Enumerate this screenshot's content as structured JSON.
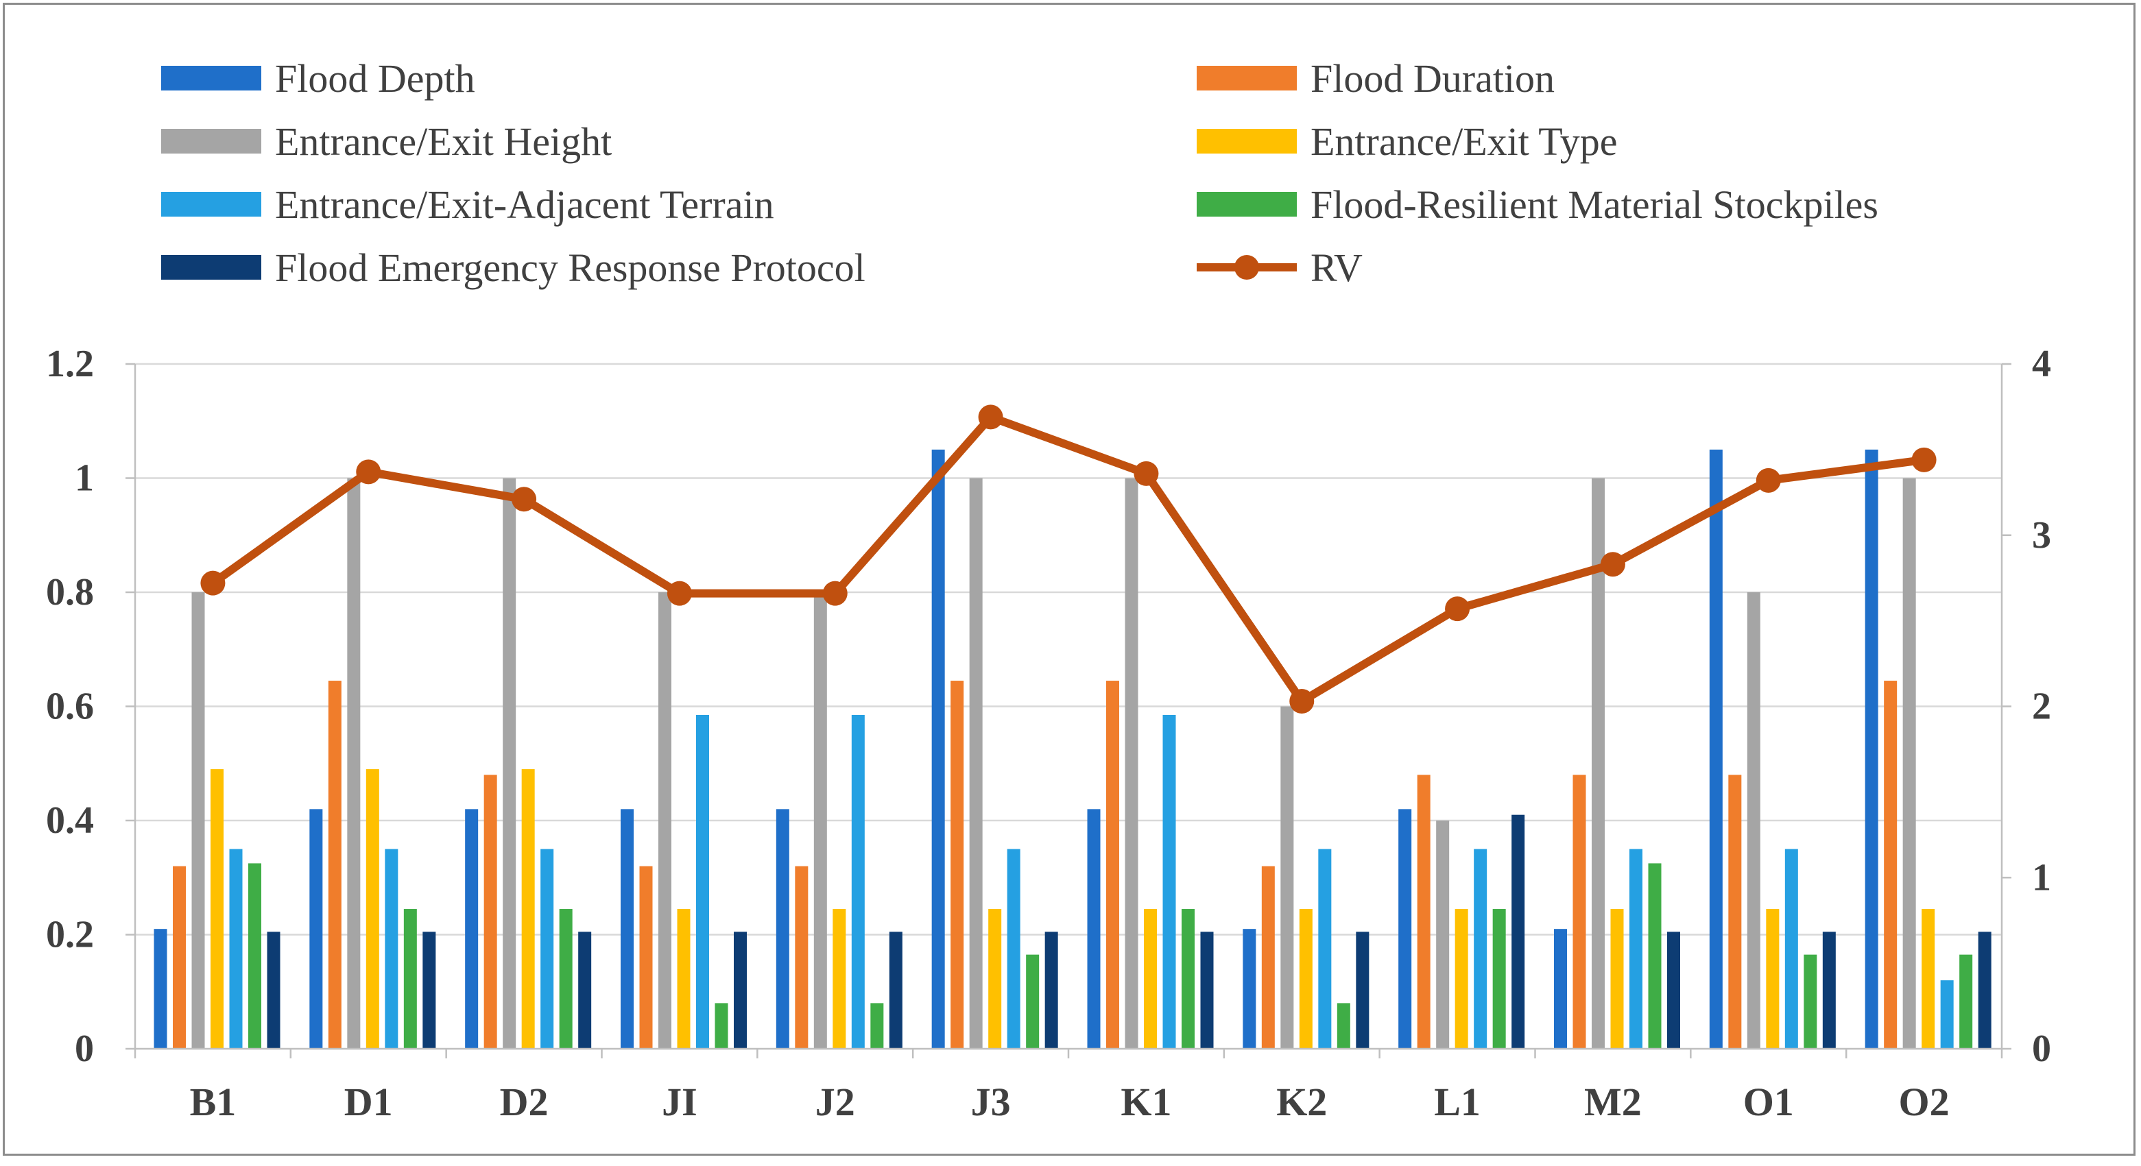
{
  "chart_data": {
    "type": "bar",
    "title": "",
    "categories": [
      "B1",
      "D1",
      "D2",
      "JI",
      "J2",
      "J3",
      "K1",
      "K2",
      "L1",
      "M2",
      "O1",
      "O2"
    ],
    "series": [
      {
        "name": "Flood Depth",
        "color": "#1f6fc9",
        "values": [
          0.21,
          0.42,
          0.42,
          0.42,
          0.42,
          1.05,
          0.42,
          0.21,
          0.42,
          0.21,
          1.05,
          1.05
        ]
      },
      {
        "name": "Flood Duration",
        "color": "#f07d2b",
        "values": [
          0.32,
          0.645,
          0.48,
          0.32,
          0.32,
          0.645,
          0.645,
          0.32,
          0.48,
          0.48,
          0.48,
          0.645
        ]
      },
      {
        "name": "Entrance/Exit Height",
        "color": "#a5a5a5",
        "values": [
          0.8,
          1.0,
          1.0,
          0.8,
          0.8,
          1.0,
          1.0,
          0.6,
          0.4,
          1.0,
          0.8,
          1.0
        ]
      },
      {
        "name": "Entrance/Exit Type",
        "color": "#ffc000",
        "values": [
          0.49,
          0.49,
          0.49,
          0.245,
          0.245,
          0.245,
          0.245,
          0.245,
          0.245,
          0.245,
          0.245,
          0.245
        ]
      },
      {
        "name": "Entrance/Exit-Adjacent Terrain",
        "color": "#25a0e2",
        "values": [
          0.35,
          0.35,
          0.35,
          0.585,
          0.585,
          0.35,
          0.585,
          0.35,
          0.35,
          0.35,
          0.35,
          0.12
        ]
      },
      {
        "name": "Flood-Resilient Material Stockpiles",
        "color": "#3fad46",
        "values": [
          0.325,
          0.245,
          0.245,
          0.08,
          0.08,
          0.165,
          0.245,
          0.08,
          0.245,
          0.325,
          0.165,
          0.165
        ]
      },
      {
        "name": "Flood Emergency Response Protocol",
        "color": "#0d3c73",
        "values": [
          0.205,
          0.205,
          0.205,
          0.205,
          0.205,
          0.205,
          0.205,
          0.205,
          0.41,
          0.205,
          0.205,
          0.205
        ]
      }
    ],
    "line_series": {
      "name": "RV",
      "color": "#c0500f",
      "axis": "right",
      "values": [
        2.72,
        3.37,
        3.21,
        2.66,
        2.66,
        3.69,
        3.36,
        2.03,
        2.57,
        2.83,
        3.32,
        3.44
      ]
    },
    "left_axis": {
      "ylim": [
        0,
        1.2
      ],
      "ticks": [
        "0",
        "0.2",
        "0.4",
        "0.6",
        "0.8",
        "1",
        "1.2"
      ]
    },
    "right_axis": {
      "ylim": [
        0,
        4
      ],
      "ticks": [
        "0",
        "1",
        "2",
        "3",
        "4"
      ]
    },
    "grid": true,
    "legend": {
      "position": "top",
      "columns": 2
    }
  }
}
